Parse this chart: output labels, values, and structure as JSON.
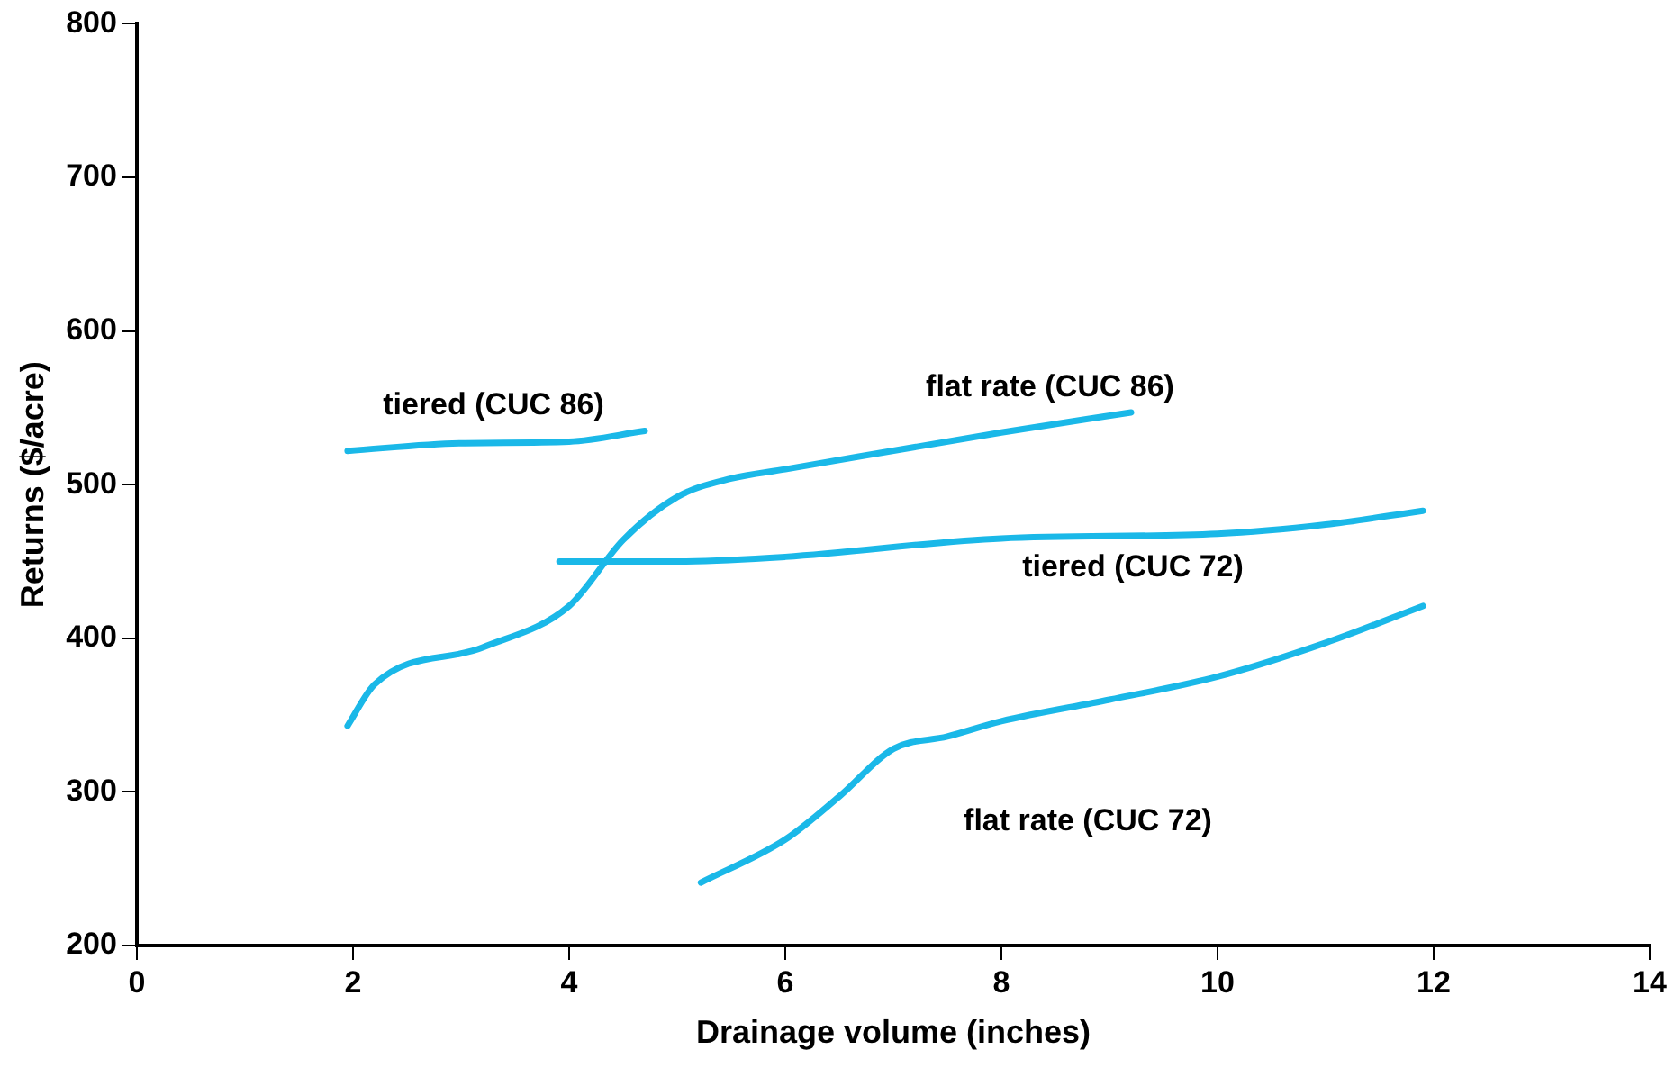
{
  "chart_data": {
    "type": "line",
    "xlabel": "Drainage volume (inches)",
    "ylabel": "Returns ($/acre)",
    "xlim": [
      0,
      14
    ],
    "xticks": [
      0,
      2,
      4,
      6,
      8,
      10,
      12,
      14
    ],
    "ylim": [
      200,
      800
    ],
    "yticks": [
      200,
      300,
      400,
      500,
      600,
      700,
      800
    ],
    "grid": false,
    "legend": false,
    "marker": "none",
    "line_style": "solid",
    "series": [
      {
        "name": "tiered (CUC 86)",
        "color": "#1ab8e8",
        "x": [
          1.95,
          3,
          4,
          4.7
        ],
        "values": [
          522,
          527,
          528,
          535
        ]
      },
      {
        "name": "flat rate (CUC 86)",
        "color": "#1ab8e8",
        "x": [
          1.95,
          2.2,
          3.2,
          4,
          4.5,
          5,
          5.5,
          6,
          8,
          9.2
        ],
        "values": [
          343,
          370,
          394,
          421,
          464,
          492,
          504,
          510,
          534,
          547
        ]
      },
      {
        "name": "tiered (CUC 72)",
        "color": "#1ab8e8",
        "x": [
          3.91,
          5,
          6,
          8,
          10,
          11,
          11.9
        ],
        "values": [
          450,
          450,
          453,
          465,
          468,
          474,
          483
        ]
      },
      {
        "name": "flat rate (CUC 72)",
        "color": "#1ab8e8",
        "x": [
          5.22,
          6,
          6.5,
          7,
          7.5,
          8,
          9,
          10,
          11,
          11.9
        ],
        "values": [
          241,
          269,
          297,
          328,
          336,
          346,
          360,
          375,
          397,
          421
        ]
      }
    ]
  }
}
